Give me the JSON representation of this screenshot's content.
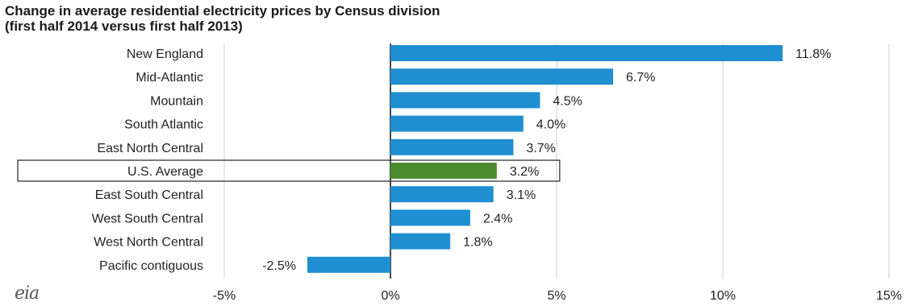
{
  "chart_data": {
    "type": "bar",
    "orientation": "horizontal",
    "title_line1": "Change in average residential electricity prices by Census  division",
    "title_line2": "(first half 2014  versus  first half 2013)",
    "categories": [
      "New England",
      "Mid-Atlantic",
      "Mountain",
      "South Atlantic",
      "East North Central",
      "U.S. Average",
      "East South Central",
      "West South Central",
      "West North Central",
      "Pacific contiguous"
    ],
    "values": [
      11.8,
      6.7,
      4.5,
      4.0,
      3.7,
      3.2,
      3.1,
      2.4,
      1.8,
      -2.5
    ],
    "value_labels": [
      "11.8%",
      "6.7%",
      "4.5%",
      "4.0%",
      "3.7%",
      "3.2%",
      "3.1%",
      "2.4%",
      "1.8%",
      "-2.5%"
    ],
    "highlight_category": "U.S. Average",
    "xlim": [
      -5,
      15
    ],
    "xticks": [
      -5,
      0,
      5,
      10,
      15
    ],
    "xtick_labels": [
      "-5%",
      "0%",
      "5%",
      "10%",
      "15%"
    ],
    "grid": true,
    "colors": {
      "bar": "#1f8fd1",
      "highlight": "#4b8b2f",
      "grid": "#cfcfcf",
      "axis": "#1a1a1a"
    }
  },
  "logo": {
    "text": "eia"
  }
}
